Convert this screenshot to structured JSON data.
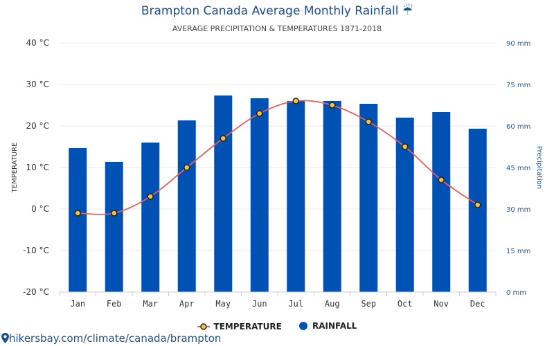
{
  "header": {
    "title": "Brampton Canada Average Monthly Rainfall ☔",
    "subtitle": "AVERAGE PRECIPITATION & TEMPERATURES 1871-2018"
  },
  "legend": {
    "temperature": "TEMPERATURE",
    "rainfall": "RAINFALL"
  },
  "footer": {
    "source": "hikersbay.com/climate/canada/brampton",
    "icon": "location-pin-icon"
  },
  "colors": {
    "rainfall_bar": "#0051b4",
    "temperature_line": "#e8605a",
    "point_fill": "#f5c242",
    "grid": "#e8e8e8",
    "title": "#1f4e8c"
  },
  "chart_data": {
    "type": "bar",
    "categories": [
      "Jan",
      "Feb",
      "Mar",
      "Apr",
      "May",
      "Jun",
      "Jul",
      "Aug",
      "Sep",
      "Oct",
      "Nov",
      "Dec"
    ],
    "series": [
      {
        "name": "RAINFALL",
        "type": "bar",
        "axis": "right",
        "unit": "mm",
        "values": [
          52,
          47,
          54,
          62,
          71,
          70,
          69,
          69,
          68,
          63,
          65,
          59
        ]
      },
      {
        "name": "TEMPERATURE",
        "type": "line",
        "axis": "left",
        "unit": "°C",
        "values": [
          -1,
          -1,
          3,
          10,
          17,
          23,
          26,
          25,
          21,
          15,
          7,
          1
        ]
      }
    ],
    "y_left": {
      "label": "TEMPERATURE",
      "range": [
        -20,
        40
      ],
      "ticks": [
        "40 °C",
        "30 °C",
        "20 °C",
        "10 °C",
        "0 °C",
        "-10 °C",
        "-20 °C"
      ]
    },
    "y_right": {
      "label": "Precipitation",
      "range": [
        0,
        90
      ],
      "ticks": [
        "90 mm",
        "75 mm",
        "60 mm",
        "45 mm",
        "30 mm",
        "15 mm",
        "0 mm"
      ]
    },
    "grid": true,
    "legend_position": "bottom"
  }
}
